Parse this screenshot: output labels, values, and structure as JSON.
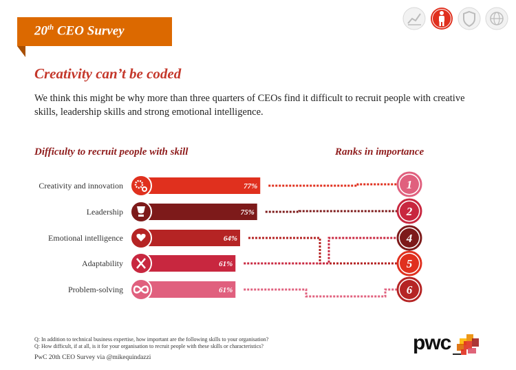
{
  "banner": {
    "title_prefix": "20",
    "title_sup": "th",
    "title_suffix": " CEO Survey"
  },
  "top_icons": [
    {
      "name": "growth-chart-icon",
      "active": false
    },
    {
      "name": "person-icon",
      "active": true
    },
    {
      "name": "shield-icon",
      "active": false
    },
    {
      "name": "globe-icon",
      "active": false
    }
  ],
  "title": "Creativity can’t be coded",
  "intro": "We think this might be why more than three quarters of CEOs find it difficult to recruit people with creative skills, leadership skills and strong emotional intelligence.",
  "left_heading": "Difficulty to recruit people with skill",
  "right_heading": "Ranks in importance",
  "chart_data": {
    "type": "bar",
    "title": "Difficulty to recruit people with skill",
    "rank_title": "Ranks in importance",
    "categories": [
      "Creativity and innovation",
      "Leadership",
      "Emotional intelligence",
      "Adaptability",
      "Problem-solving"
    ],
    "values": [
      77,
      75,
      64,
      61,
      61
    ],
    "value_labels": [
      "77%",
      "75%",
      "64%",
      "61%",
      "61%"
    ],
    "ranks": [
      1,
      2,
      5,
      4,
      6
    ],
    "rank_circles": [
      "1",
      "2",
      "4",
      "5",
      "6"
    ],
    "icons": [
      "gears-icon",
      "trophy-icon",
      "heart-hands-icon",
      "tools-icon",
      "infinity-icon"
    ],
    "colors": [
      "#e0301e",
      "#7d1a1a",
      "#b52424",
      "#c8273f",
      "#e0607e"
    ],
    "rank_colors": [
      "#e0607e",
      "#c8273f",
      "#7d1a1a",
      "#e0301e",
      "#b52424"
    ],
    "unit": "%"
  },
  "footnotes": [
    "Q: In addition to technical business expertise, how important are the following skills to your organisation?",
    "Q: How difficult, if at all, is it for your organisation to recruit people with these skills or characteristics?"
  ],
  "credit": "PwC 20th CEO Survey via @mikequindazzi",
  "logo_text": "pwc",
  "logo_colors": [
    "#ffb600",
    "#eb8c00",
    "#dc6900",
    "#e0301e",
    "#a32020",
    "#db536a"
  ]
}
